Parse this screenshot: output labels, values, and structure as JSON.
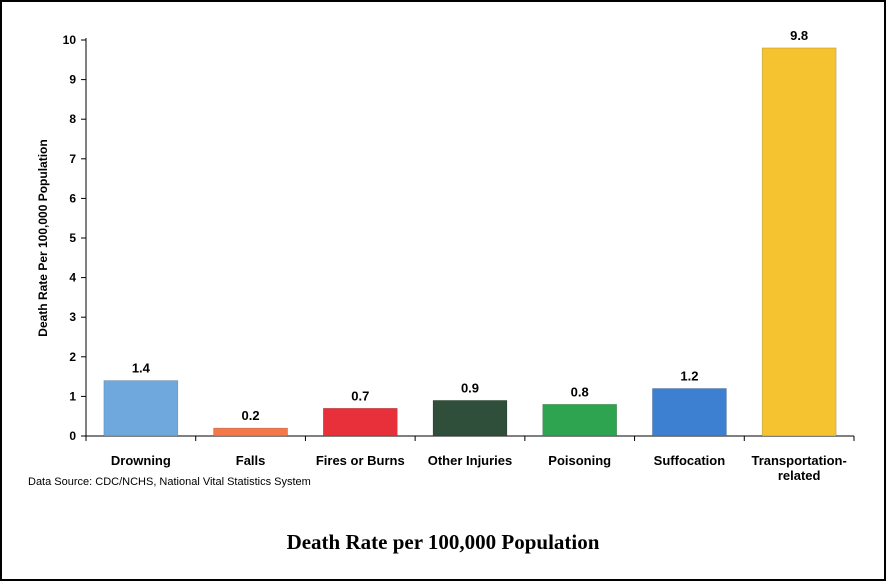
{
  "chart_data": {
    "type": "bar",
    "categories": [
      "Drowning",
      "Falls",
      "Fires or Burns",
      "Other Injuries",
      "Poisoning",
      "Suffocation",
      "Transportation-related"
    ],
    "category_lines": [
      [
        "Drowning"
      ],
      [
        "Falls"
      ],
      [
        "Fires or Burns"
      ],
      [
        "Other Injuries"
      ],
      [
        "Poisoning"
      ],
      [
        "Suffocation"
      ],
      [
        "Transportation-",
        "related"
      ]
    ],
    "values": [
      1.4,
      0.2,
      0.7,
      0.9,
      0.8,
      1.2,
      9.8
    ],
    "data_labels": [
      "1.4",
      "0.2",
      "0.7",
      "0.9",
      "0.8",
      "1.2",
      "9.8"
    ],
    "colors": [
      "#6fa8dc",
      "#f4784a",
      "#e8303a",
      "#2f4f3a",
      "#2ea350",
      "#3d7fd1",
      "#f5c230"
    ],
    "ylabel": "Death Rate Per 100,000 Population",
    "ylim": [
      0,
      10
    ],
    "yticks": [
      0,
      1,
      2,
      3,
      4,
      5,
      6,
      7,
      8,
      9,
      10
    ],
    "grid": false,
    "legend": "none"
  },
  "source_note": "Data Source: CDC/NCHS, National Vital Statistics System",
  "caption": "Death Rate per 100,000 Population"
}
